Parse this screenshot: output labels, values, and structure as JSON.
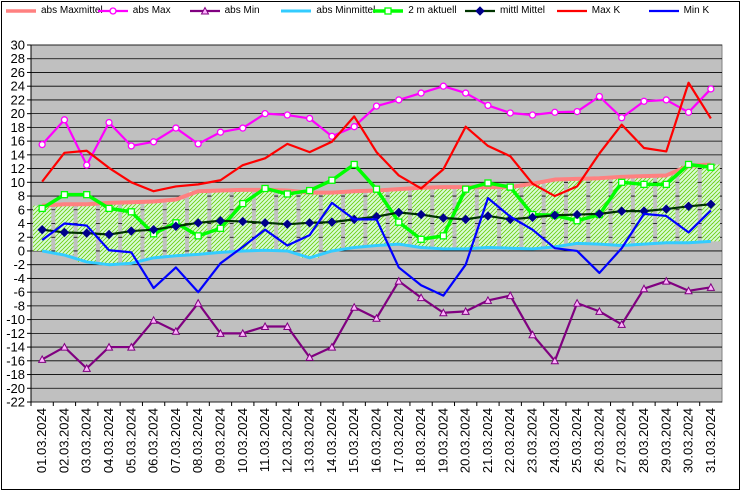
{
  "chart_data": {
    "type": "line",
    "title": "",
    "xlabel": "",
    "ylabel": "",
    "ylim": [
      -22,
      30
    ],
    "y_tick_step": 2,
    "grid": "horizontal",
    "legend_position": "top",
    "plot_background": "#c0c0c0",
    "x": [
      "01.03.2024",
      "02.03.2024",
      "03.03.2024",
      "04.03.2024",
      "05.03.2024",
      "06.03.2024",
      "07.03.2024",
      "08.03.2024",
      "09.03.2024",
      "10.03.2024",
      "11.03.2024",
      "12.03.2024",
      "13.03.2024",
      "14.03.2024",
      "15.03.2024",
      "16.03.2024",
      "17.03.2024",
      "18.03.2024",
      "19.03.2024",
      "20.03.2024",
      "21.03.2024",
      "22.03.2024",
      "23.03.2024",
      "24.03.2024",
      "25.03.2024",
      "26.03.2024",
      "27.03.2024",
      "28.03.2024",
      "29.03.2024",
      "30.03.2024",
      "31.03.2024"
    ],
    "series": [
      {
        "name": "abs Maxmittel",
        "color": "#ff8080",
        "marker": "none",
        "values": [
          6.6,
          6.8,
          6.8,
          7.0,
          7.1,
          7.2,
          7.5,
          8.7,
          8.8,
          8.9,
          8.9,
          8.8,
          8.5,
          8.5,
          8.7,
          8.8,
          9.0,
          9.2,
          9.3,
          9.3,
          9.3,
          9.3,
          9.8,
          10.4,
          10.5,
          10.6,
          10.8,
          10.9,
          11.0,
          12.4,
          12.6
        ]
      },
      {
        "name": "abs Max",
        "color": "#ff00ff",
        "marker": "circle",
        "values": [
          15.5,
          19.1,
          12.5,
          18.7,
          15.3,
          15.9,
          17.9,
          15.6,
          17.3,
          17.9,
          20.0,
          19.8,
          19.3,
          16.7,
          18.1,
          21.1,
          22.0,
          23.0,
          24.0,
          23.0,
          21.2,
          20.1,
          19.8,
          20.2,
          20.3,
          22.5,
          19.4,
          21.8,
          22.0,
          20.2,
          23.6
        ]
      },
      {
        "name": "abs Min",
        "color": "#800080",
        "marker": "triangle",
        "values": [
          -15.8,
          -14.0,
          -17.1,
          -14.0,
          -14.0,
          -10.1,
          -11.7,
          -7.6,
          -12.0,
          -12.0,
          -11.0,
          -11.0,
          -15.5,
          -14.0,
          -8.2,
          -9.8,
          -4.4,
          -6.8,
          -9.0,
          -8.8,
          -7.2,
          -6.5,
          -12.2,
          -16.0,
          -7.6,
          -8.8,
          -10.7,
          -5.5,
          -4.4,
          -5.8,
          -5.3
        ]
      },
      {
        "name": "abs Minmittel",
        "color": "#33ccff",
        "marker": "none",
        "values": [
          0.0,
          -0.6,
          -1.6,
          -2.0,
          -1.8,
          -1.0,
          -0.7,
          -0.5,
          -0.2,
          0.0,
          0.1,
          0.0,
          -1.0,
          0.0,
          0.5,
          0.8,
          1.0,
          0.5,
          0.3,
          0.3,
          0.5,
          0.4,
          0.3,
          0.6,
          1.1,
          1.0,
          0.8,
          1.0,
          1.2,
          1.2,
          1.4
        ]
      },
      {
        "name": "2 m aktuell",
        "color": "#00ff00",
        "marker": "square",
        "values": [
          6.2,
          8.2,
          8.2,
          6.2,
          5.7,
          2.5,
          4.1,
          2.2,
          3.3,
          6.9,
          9.1,
          8.3,
          8.8,
          10.3,
          12.6,
          9.0,
          4.2,
          1.7,
          2.2,
          9.0,
          9.9,
          9.3,
          5.3,
          5.2,
          4.4,
          5.3,
          10.0,
          9.7,
          9.7,
          12.6,
          12.2
        ]
      },
      {
        "name": "mittl Mittel",
        "color": "#003300",
        "marker": "diamond",
        "values": [
          3.1,
          2.7,
          2.6,
          2.4,
          2.9,
          3.1,
          3.6,
          4.1,
          4.4,
          4.3,
          4.1,
          3.9,
          4.1,
          4.2,
          4.6,
          5.0,
          5.6,
          5.3,
          4.8,
          4.6,
          5.1,
          4.6,
          4.9,
          5.2,
          5.3,
          5.4,
          5.8,
          5.8,
          6.1,
          6.5,
          6.8
        ]
      },
      {
        "name": "Max K",
        "color": "#ff0000",
        "marker": "none",
        "values": [
          10.1,
          14.3,
          14.6,
          12.1,
          10.0,
          8.7,
          9.4,
          9.7,
          10.3,
          12.5,
          13.5,
          15.6,
          14.4,
          15.9,
          19.6,
          14.4,
          11.0,
          9.1,
          11.9,
          18.1,
          15.3,
          13.8,
          9.8,
          8.0,
          9.4,
          14.2,
          18.4,
          15.0,
          14.5,
          24.5,
          19.3
        ]
      },
      {
        "name": "Min K",
        "color": "#0000ff",
        "marker": "none",
        "values": [
          1.6,
          4.0,
          3.7,
          0.1,
          -0.2,
          -5.4,
          -2.4,
          -6.0,
          -1.8,
          0.6,
          3.1,
          0.8,
          2.3,
          7.0,
          4.6,
          4.6,
          -2.4,
          -5.0,
          -6.5,
          -2.0,
          7.7,
          5.0,
          3.1,
          0.4,
          0.0,
          -3.2,
          0.4,
          5.4,
          5.1,
          2.7,
          5.9
        ]
      }
    ]
  }
}
